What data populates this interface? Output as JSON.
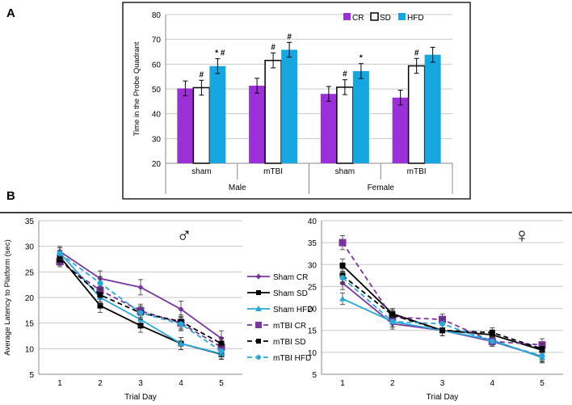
{
  "panel_a_label": "A",
  "panel_b_label": "B",
  "male_symbol": "♂",
  "female_symbol": "♀",
  "chart_data": [
    {
      "type": "bar",
      "ylabel": "Time in the Probe Quadrant",
      "ylim": [
        20,
        80
      ],
      "yticks": [
        20,
        30,
        40,
        50,
        60,
        70,
        80
      ],
      "groups": [
        "sham",
        "mTBI",
        "sham",
        "mTBI"
      ],
      "sex_labels": [
        "Male",
        "Female"
      ],
      "series": [
        {
          "name": "CR",
          "color": "#9b30d9",
          "values": [
            50.2,
            51.3,
            48.0,
            46.5
          ],
          "errors": [
            3.0,
            3.0,
            3.0,
            3.0
          ],
          "marks": [
            "",
            "",
            "",
            ""
          ]
        },
        {
          "name": "SD",
          "color": "#ffffff",
          "values": [
            50.5,
            61.5,
            50.7,
            59.3
          ],
          "errors": [
            3.0,
            3.0,
            3.0,
            3.0
          ],
          "marks": [
            "#",
            "#",
            "#",
            "#"
          ]
        },
        {
          "name": "HFD",
          "color": "#17a7e0",
          "values": [
            59.2,
            65.8,
            57.2,
            63.8
          ],
          "errors": [
            3.0,
            3.0,
            3.0,
            3.0
          ],
          "marks": [
            "* #",
            "#",
            "*",
            ""
          ]
        }
      ]
    },
    {
      "type": "line",
      "xlabel": "Trial Day",
      "ylabel": "Average Latency to Platform (sec)",
      "x": [
        1,
        2,
        3,
        4,
        5
      ],
      "ylim": [
        5,
        35
      ],
      "yticks": [
        5,
        10,
        15,
        20,
        25,
        30,
        35
      ],
      "series": [
        {
          "name": "Sham CR",
          "values": [
            29.0,
            23.7,
            22.0,
            17.7,
            12.0
          ],
          "errors": [
            1.0,
            1.5,
            1.5,
            1.6,
            1.5
          ]
        },
        {
          "name": "Sham SD",
          "values": [
            28.0,
            18.4,
            14.5,
            11.0,
            8.9
          ],
          "errors": [
            1.2,
            1.3,
            1.3,
            1.2,
            1.0
          ]
        },
        {
          "name": "Sham HFD",
          "values": [
            28.7,
            20.0,
            15.7,
            11.0,
            9.0
          ],
          "errors": [
            1.0,
            1.3,
            1.3,
            1.2,
            1.0
          ]
        },
        {
          "name": "mTBI CR",
          "values": [
            27.0,
            21.4,
            17.4,
            15.0,
            10.3
          ],
          "errors": [
            1.0,
            1.3,
            1.3,
            1.3,
            1.2
          ]
        },
        {
          "name": "mTBI SD",
          "values": [
            27.4,
            20.5,
            17.0,
            15.3,
            11.0
          ],
          "errors": [
            1.1,
            1.3,
            1.3,
            1.3,
            1.2
          ]
        },
        {
          "name": "mTBI HFD",
          "values": [
            28.6,
            22.8,
            17.0,
            14.8,
            9.5
          ],
          "errors": [
            1.1,
            1.3,
            1.3,
            1.3,
            1.1
          ]
        }
      ]
    },
    {
      "type": "line",
      "xlabel": "Trial Day",
      "ylabel": "",
      "x": [
        1,
        2,
        3,
        4,
        5
      ],
      "ylim": [
        5,
        40
      ],
      "yticks": [
        5,
        10,
        15,
        20,
        25,
        30,
        35,
        40
      ],
      "series": [
        {
          "name": "Sham CR",
          "values": [
            25.8,
            16.5,
            15.0,
            12.5,
            9.0
          ],
          "errors": [
            1.5,
            1.2,
            1.2,
            1.1,
            1.2
          ]
        },
        {
          "name": "Sham SD",
          "values": [
            29.8,
            18.8,
            15.0,
            14.0,
            10.5
          ],
          "errors": [
            1.5,
            1.2,
            1.2,
            1.1,
            1.2
          ]
        },
        {
          "name": "Sham HFD",
          "values": [
            22.2,
            17.0,
            15.0,
            12.8,
            8.8
          ],
          "errors": [
            1.3,
            1.2,
            1.2,
            1.1,
            1.2
          ]
        },
        {
          "name": "mTBI CR",
          "values": [
            35.0,
            18.0,
            17.5,
            12.5,
            11.7
          ],
          "errors": [
            1.6,
            1.2,
            1.2,
            1.1,
            1.4
          ]
        },
        {
          "name": "mTBI SD",
          "values": [
            27.5,
            18.5,
            15.0,
            14.5,
            10.8
          ],
          "errors": [
            1.5,
            1.2,
            1.2,
            1.1,
            1.2
          ]
        },
        {
          "name": "mTBI HFD",
          "values": [
            27.0,
            17.0,
            16.5,
            12.5,
            9.2
          ],
          "errors": [
            1.5,
            1.2,
            1.2,
            1.1,
            1.2
          ]
        }
      ]
    }
  ]
}
